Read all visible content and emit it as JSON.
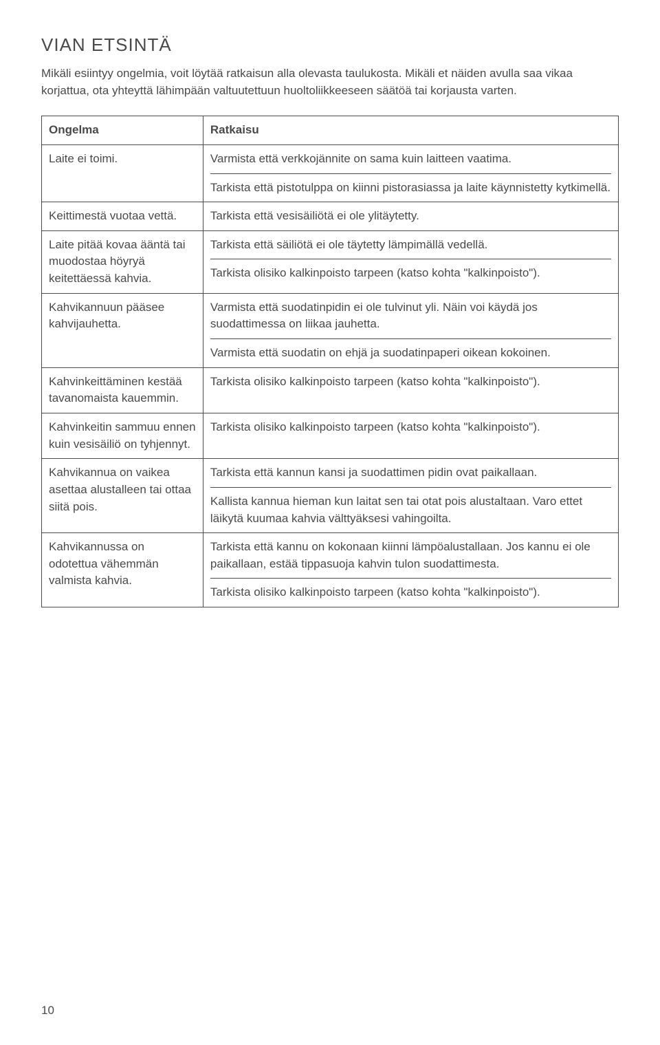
{
  "page": {
    "title": "VIAN ETSINTÄ",
    "intro": "Mikäli esiintyy ongelmia, voit löytää ratkaisun alla olevasta taulukosta. Mikäli et näiden avulla saa vikaa korjattua, ota yhteyttä lähimpään valtuutettuun huoltoliikkeeseen säätöä tai korjausta varten.",
    "page_number": "10"
  },
  "table": {
    "header": {
      "left": "Ongelma",
      "right": "Ratkaisu"
    },
    "rows": [
      {
        "left": "Laite ei toimi.",
        "right": [
          "Varmista että verkkojännite on sama kuin laitteen vaatima.",
          "Tarkista että pistotulppa on kiinni pistorasiassa ja laite käynnistetty kytkimellä."
        ]
      },
      {
        "left": "Keittimestä vuotaa vettä.",
        "right": [
          "Tarkista että vesisäiliötä ei ole ylitäytetty."
        ]
      },
      {
        "left": "Laite pitää kovaa ääntä tai muodostaa höyryä keitettäessä kahvia.",
        "right": [
          "Tarkista että säiliötä ei ole täytetty lämpimällä vedellä.",
          "Tarkista olisiko kalkinpoisto tarpeen (katso kohta \"kalkinpoisto\")."
        ]
      },
      {
        "left": "Kahvikannuun pääsee kahvijauhetta.",
        "right": [
          "Varmista että suodatinpidin ei ole tulvinut yli. Näin voi käydä jos suodattimessa on liikaa jauhetta.",
          "Varmista että suodatin on ehjä ja suodatinpaperi oikean kokoinen."
        ]
      },
      {
        "left": "Kahvinkeittäminen kestää tavanomaista kauemmin.",
        "right": [
          "Tarkista olisiko kalkinpoisto tarpeen (katso kohta \"kalkinpoisto\")."
        ]
      },
      {
        "left": "Kahvinkeitin sammuu ennen kuin vesisäiliö on tyhjennyt.",
        "right": [
          "Tarkista olisiko kalkinpoisto tarpeen (katso kohta \"kalkinpoisto\")."
        ]
      },
      {
        "left": "Kahvikannua on vaikea asettaa alustalleen tai ottaa siitä pois.",
        "right": [
          "Tarkista että kannun kansi ja suodattimen pidin ovat paikallaan.",
          "Kallista kannua hieman kun laitat sen tai otat pois alustaltaan. Varo ettet läikytä kuumaa kahvia välttyäksesi vahingoilta."
        ]
      },
      {
        "left": "Kahvikannussa on odotettua vähemmän valmista kahvia.",
        "right": [
          "Tarkista että kannu on kokonaan kiinni lämpöalustallaan. Jos kannu ei ole paikallaan, estää tippasuoja kahvin tulon suodattimesta.",
          " Tarkista olisiko kalkinpoisto tarpeen (katso kohta \"kalkinpoisto\")."
        ]
      }
    ]
  }
}
